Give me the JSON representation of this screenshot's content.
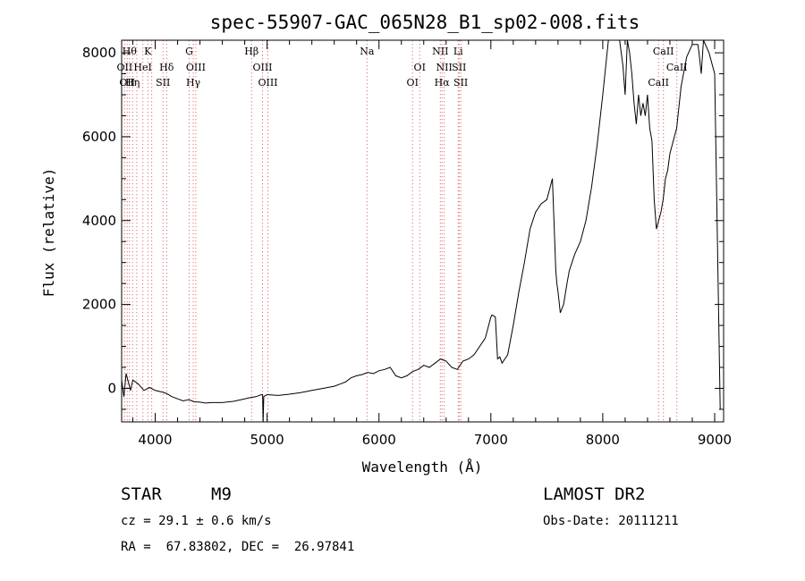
{
  "chart_data": {
    "type": "line",
    "title": "spec-55907-GAC_065N28_B1_sp02-008.fits",
    "xlabel": "Wavelength (Å)",
    "ylabel": "Flux (relative)",
    "xlim": [
      3700,
      9080
    ],
    "ylim": [
      -800,
      8300
    ],
    "x_ticks": [
      4000,
      5000,
      6000,
      7000,
      8000,
      9000
    ],
    "y_ticks": [
      0,
      2000,
      4000,
      6000,
      8000
    ],
    "grid": false,
    "series": [
      {
        "x": [
          3700,
          3720,
          3740,
          3760,
          3780,
          3800,
          3850,
          3900,
          3950,
          4000,
          4050,
          4100,
          4150,
          4200,
          4250,
          4300,
          4350,
          4400,
          4450,
          4500,
          4600,
          4700,
          4800,
          4850,
          4900,
          4950,
          4960,
          4965,
          4970,
          4980,
          5000,
          5100,
          5200,
          5300,
          5400,
          5500,
          5600,
          5700,
          5750,
          5800,
          5850,
          5900,
          5950,
          6000,
          6050,
          6100,
          6150,
          6200,
          6250,
          6300,
          6350,
          6400,
          6450,
          6500,
          6550,
          6600,
          6650,
          6700,
          6750,
          6800,
          6850,
          6900,
          6950,
          6980,
          7000,
          7010,
          7040,
          7060,
          7080,
          7100,
          7150,
          7200,
          7250,
          7300,
          7350,
          7400,
          7450,
          7500,
          7550,
          7580,
          7590,
          7600,
          7620,
          7650,
          7680,
          7700,
          7750,
          7800,
          7850,
          7900,
          7950,
          8000,
          8050,
          8100,
          8150,
          8180,
          8200,
          8220,
          8240,
          8260,
          8280,
          8300,
          8320,
          8340,
          8360,
          8380,
          8400,
          8420,
          8440,
          8460,
          8480,
          8500,
          8520,
          8540,
          8560,
          8580,
          8600,
          8620,
          8640,
          8660,
          8680,
          8700,
          8750,
          8800,
          8850,
          8860,
          8880,
          8900,
          8950,
          9000,
          9050
        ],
        "y": [
          200,
          -200,
          350,
          150,
          -50,
          200,
          100,
          -50,
          20,
          -50,
          -80,
          -120,
          -200,
          -250,
          -300,
          -270,
          -320,
          -330,
          -350,
          -340,
          -340,
          -310,
          -250,
          -220,
          -200,
          -150,
          -150,
          -900,
          -200,
          -180,
          -150,
          -170,
          -140,
          -100,
          -50,
          0,
          50,
          150,
          250,
          300,
          330,
          380,
          350,
          420,
          450,
          500,
          300,
          250,
          300,
          400,
          450,
          550,
          500,
          600,
          700,
          650,
          500,
          450,
          650,
          700,
          800,
          1000,
          1200,
          1500,
          1700,
          1750,
          1700,
          700,
          750,
          600,
          800,
          1500,
          2300,
          3000,
          3800,
          4200,
          4400,
          4500,
          5000,
          2800,
          2500,
          2300,
          1800,
          2000,
          2500,
          2800,
          3200,
          3500,
          4000,
          4800,
          5800,
          7000,
          8300,
          8300,
          8300,
          7700,
          7000,
          8300,
          8000,
          7500,
          6800,
          6300,
          7000,
          6500,
          6800,
          6500,
          7000,
          6200,
          5900,
          4500,
          3800,
          4000,
          4200,
          4500,
          5000,
          5200,
          5600,
          5800,
          6000,
          6200,
          6700,
          7200,
          7900,
          8200,
          8200,
          8000,
          7500,
          8300,
          8000,
          7500,
          -500
        ]
      }
    ],
    "line_marks": [
      {
        "wave": 3727,
        "label": "OII",
        "row": 2
      },
      {
        "wave": 3750,
        "label": "OII",
        "row": 3
      },
      {
        "wave": 3770,
        "label": "Hθ",
        "row": 1
      },
      {
        "wave": 3798,
        "label": "Hη",
        "row": 3
      },
      {
        "wave": 3835,
        "label": "",
        "row": 0
      },
      {
        "wave": 3889,
        "label": "HeI",
        "row": 2
      },
      {
        "wave": 3934,
        "label": "K",
        "row": 1
      },
      {
        "wave": 3969,
        "label": "",
        "row": 0
      },
      {
        "wave": 4070,
        "label": "SII",
        "row": 3
      },
      {
        "wave": 4102,
        "label": "Hδ",
        "row": 2
      },
      {
        "wave": 4304,
        "label": "G",
        "row": 1
      },
      {
        "wave": 4340,
        "label": "Hγ",
        "row": 3
      },
      {
        "wave": 4363,
        "label": "OIII",
        "row": 2
      },
      {
        "wave": 4861,
        "label": "Hβ",
        "row": 1
      },
      {
        "wave": 4959,
        "label": "OIII",
        "row": 2
      },
      {
        "wave": 5007,
        "label": "OIII",
        "row": 3
      },
      {
        "wave": 5893,
        "label": "Na",
        "row": 1
      },
      {
        "wave": 6300,
        "label": "OI",
        "row": 3
      },
      {
        "wave": 6364,
        "label": "OI",
        "row": 2
      },
      {
        "wave": 6548,
        "label": "NII",
        "row": 1
      },
      {
        "wave": 6563,
        "label": "Hα",
        "row": 3
      },
      {
        "wave": 6583,
        "label": "NII",
        "row": 2
      },
      {
        "wave": 6708,
        "label": "Li",
        "row": 1
      },
      {
        "wave": 6716,
        "label": "SII",
        "row": 2
      },
      {
        "wave": 6731,
        "label": "SII",
        "row": 3
      },
      {
        "wave": 8498,
        "label": "CaII",
        "row": 3
      },
      {
        "wave": 8542,
        "label": "CaII",
        "row": 1
      },
      {
        "wave": 8662,
        "label": "CaII",
        "row": 2
      }
    ]
  },
  "info": {
    "object_class": "STAR",
    "subclass": "M9",
    "survey": "LAMOST DR2",
    "velocity": "cz = 29.1 ± 0.6 km/s",
    "obs_date": "Obs-Date: 20111211",
    "coords": "RA =  67.83802, DEC =  26.97841"
  }
}
